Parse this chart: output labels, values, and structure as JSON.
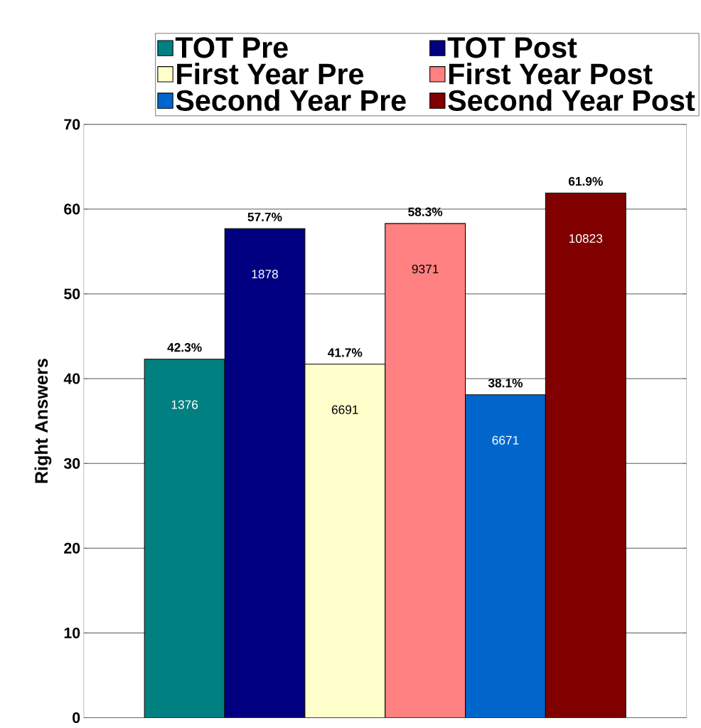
{
  "chart_data": {
    "type": "bar",
    "ylabel": "Right Answers",
    "categories": [
      null
    ],
    "series": [
      {
        "name": "TOT Pre",
        "color": "#008080",
        "values": [
          42.3
        ],
        "value_labels": [
          "42.3%"
        ]
      },
      {
        "name": "TOT Post",
        "color": "#000080",
        "values": [
          57.7
        ],
        "value_labels": [
          "57.7%"
        ]
      },
      {
        "name": "First Year Pre",
        "color": "#ffffcc",
        "values": [
          41.7
        ],
        "value_labels": [
          "41.7%"
        ]
      },
      {
        "name": "First Year Post",
        "color": "#ff8080",
        "values": [
          58.3
        ],
        "value_labels": [
          "58.3%"
        ]
      },
      {
        "name": "Second Year Pre",
        "color": "#0066cc",
        "values": [
          38.1
        ],
        "value_labels": [
          "38.1%"
        ]
      },
      {
        "name": "Second Year Post",
        "color": "#800000",
        "values": [
          61.9
        ],
        "value_labels": [
          "61.9%"
        ]
      }
    ],
    "annotations": [
      "1376",
      "1878",
      "6691",
      "9371",
      "6671",
      "10823"
    ],
    "ylim": [
      0,
      70
    ],
    "yticks": [
      0,
      10,
      20,
      30,
      40,
      50,
      60,
      70
    ],
    "grid": "y",
    "legend": "top"
  }
}
